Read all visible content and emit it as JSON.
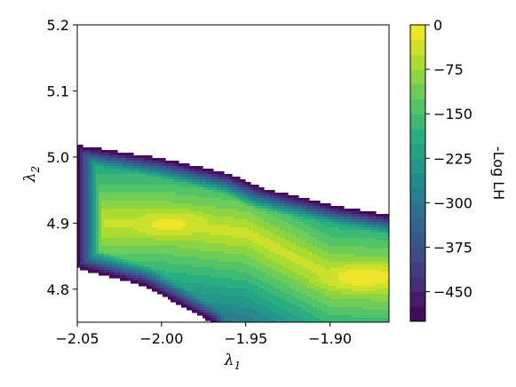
{
  "chart_data": {
    "type": "contour",
    "title": "",
    "xlabel": {
      "symbol": "λ",
      "subscript": "1"
    },
    "ylabel": {
      "symbol": "λ",
      "subscript": "2"
    },
    "xlim": [
      -2.05,
      -1.865
    ],
    "ylim": [
      4.75,
      5.2
    ],
    "xticks": [
      -2.05,
      -2.0,
      -1.95,
      -1.9
    ],
    "xtick_labels": [
      "−2.05",
      "−2.00",
      "−1.95",
      "−1.90"
    ],
    "yticks": [
      4.8,
      4.9,
      5.0,
      5.1,
      5.2
    ],
    "ytick_labels": [
      "4.8",
      "4.9",
      "5.0",
      "5.1",
      "5.2"
    ],
    "grid": false,
    "colormap": "viridis",
    "colormap_stops": [
      "#440154",
      "#472d7b",
      "#3b528b",
      "#2c728e",
      "#21918c",
      "#28ae80",
      "#5ec962",
      "#addc30",
      "#fde725"
    ],
    "colorbar": {
      "label": "-Log LH",
      "range": [
        -500,
        0
      ],
      "levels": 20,
      "ticks": [
        0,
        -75,
        -150,
        -225,
        -300,
        -375,
        -450
      ],
      "tick_labels": [
        "0",
        "−75",
        "−150",
        "−225",
        "−300",
        "−375",
        "−450"
      ]
    },
    "filled_region": {
      "upper_edge": [
        [
          -2.05,
          5.018
        ],
        [
          -2.0,
          4.998
        ],
        [
          -1.96,
          4.975
        ],
        [
          -1.94,
          4.953
        ],
        [
          -1.9,
          4.928
        ],
        [
          -1.865,
          4.912
        ]
      ],
      "lower_edge": [
        [
          -2.05,
          4.832
        ],
        [
          -2.01,
          4.805
        ],
        [
          -1.97,
          4.75
        ]
      ],
      "closing_edge": [
        [
          -1.865,
          4.75
        ]
      ]
    },
    "ridge": [
      [
        -2.05,
        4.9
      ],
      [
        -2.0,
        4.9
      ],
      [
        -1.95,
        4.885
      ],
      [
        -1.9,
        4.82
      ],
      [
        -1.865,
        4.815
      ]
    ],
    "peaks": [
      {
        "x": -1.88,
        "y": 4.818,
        "value": -10
      },
      {
        "x": -1.995,
        "y": 4.898,
        "value": -18
      }
    ]
  }
}
